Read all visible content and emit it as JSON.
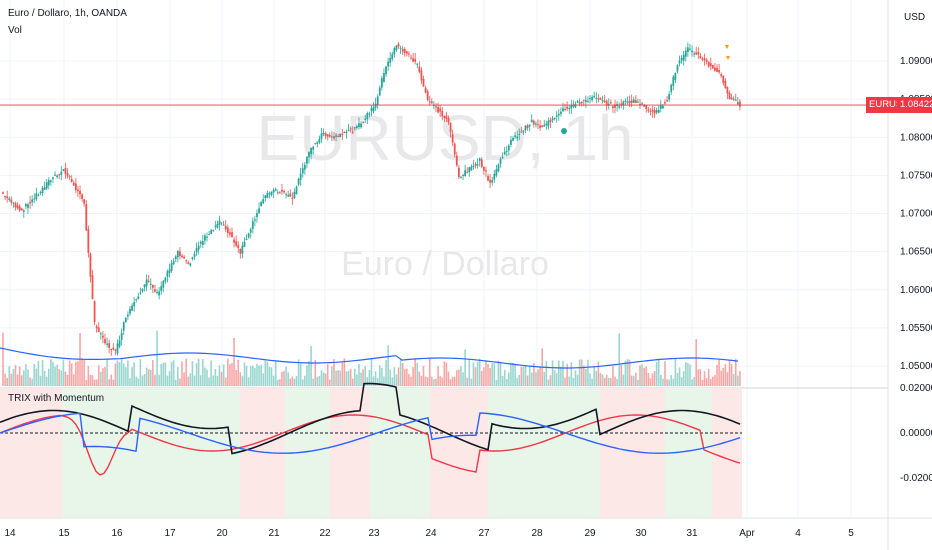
{
  "header": {
    "symbol_line": "Euro / Dollaro, 1h, OANDA",
    "volume_label": "Vol",
    "indicator_label": "TRIX with Momentum",
    "currency": "USD"
  },
  "watermark": {
    "ticker": "EURUSD, 1h",
    "name": "Euro / Dollaro"
  },
  "price_tags": {
    "symbol": "EURUSD",
    "last": "1.08422"
  },
  "colors": {
    "up": "#26a69a",
    "down": "#ef5350",
    "vol_ma": "#2962ff",
    "trix": "#f23645",
    "signal": "#131722",
    "momentum": "#2962ff",
    "bg_green": "#e8f5e9",
    "bg_red": "#fde8e8",
    "grid": "#f0f3fa",
    "price_line": "#f23645"
  },
  "chart_data": {
    "type": "candlestick",
    "price_axis_ticks": [
      "1.09000",
      "1.08500",
      "1.08000",
      "1.07500",
      "1.07000",
      "1.06500",
      "1.06000",
      "1.05500",
      "1.05000"
    ],
    "indicator_axis_ticks": [
      "0.02000",
      "0.00000",
      "-0.02000"
    ],
    "time_axis_ticks": [
      "14",
      "15",
      "16",
      "17",
      "20",
      "21",
      "22",
      "23",
      "24",
      "27",
      "28",
      "29",
      "30",
      "31",
      "Apr",
      "4",
      "5"
    ],
    "last_price": 1.08422,
    "ohlc_path": [
      1.0728,
      1.0715,
      1.0704,
      1.0718,
      1.0732,
      1.0748,
      1.0757,
      1.0738,
      1.0712,
      1.0555,
      1.053,
      1.0518,
      1.0565,
      1.059,
      1.0612,
      1.0595,
      1.0622,
      1.0648,
      1.0632,
      1.0658,
      1.0675,
      1.069,
      1.0673,
      1.065,
      1.0682,
      1.0715,
      1.073,
      1.0728,
      1.072,
      1.076,
      1.079,
      1.0805,
      1.08,
      1.0808,
      1.081,
      1.0825,
      1.0845,
      1.0895,
      1.092,
      1.091,
      1.0895,
      1.085,
      1.0835,
      1.082,
      1.0748,
      1.0758,
      1.077,
      1.074,
      1.077,
      1.0795,
      1.0808,
      1.082,
      1.0812,
      1.0825,
      1.0838,
      1.0842,
      1.0848,
      1.0852,
      1.0845,
      1.084,
      1.0846,
      1.0848,
      1.0838,
      1.0833,
      1.085,
      1.0895,
      1.0915,
      1.0908,
      1.0895,
      1.0885,
      1.0852,
      1.0842
    ]
  }
}
